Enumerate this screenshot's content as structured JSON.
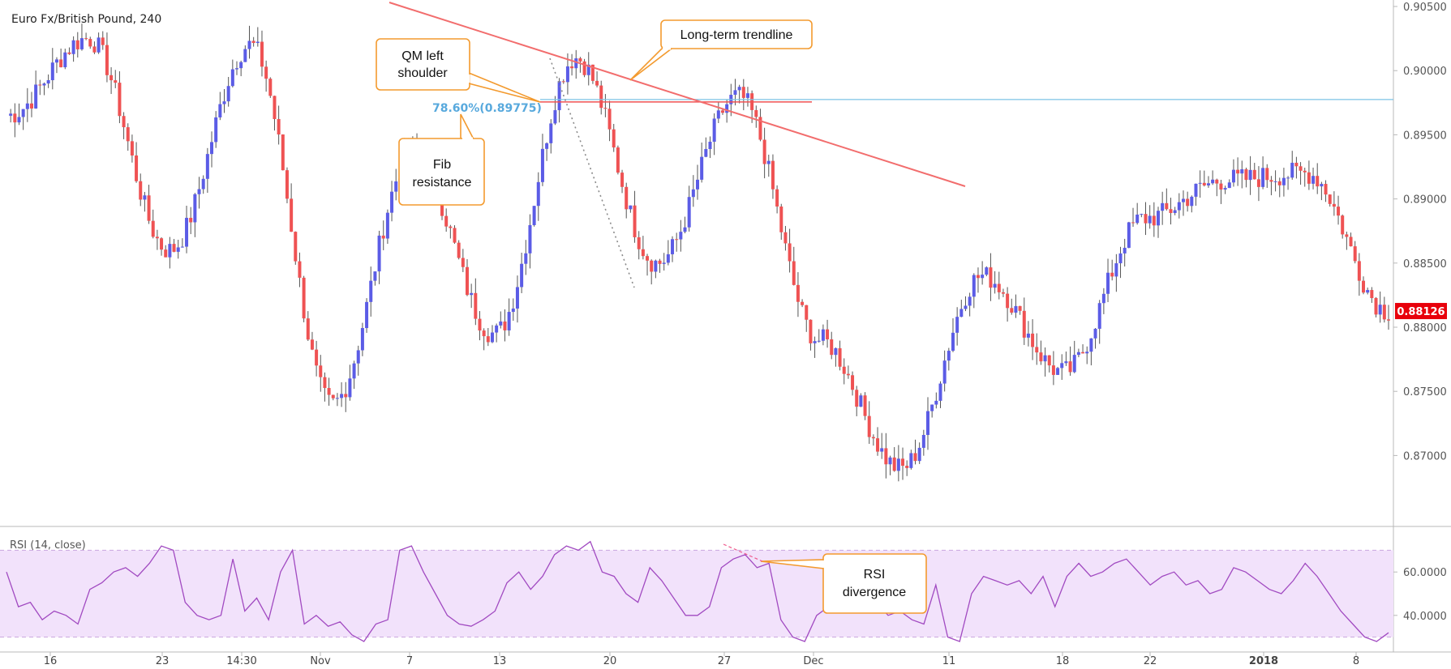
{
  "chart_data": [
    {
      "type": "candlestick",
      "title": "Euro Fx/British Pound, 240",
      "ylim": [
        0.8675,
        0.905
      ],
      "y_ticks": [
        "0.90500",
        "0.90000",
        "0.89500",
        "0.89000",
        "0.88500",
        "0.88000",
        "0.87500",
        "0.87000"
      ],
      "y_tick_values": [
        0.905,
        0.9,
        0.895,
        0.89,
        0.885,
        0.88,
        0.875,
        0.87
      ],
      "x_ticks": [
        "16",
        "23",
        "14:30",
        "Nov",
        "7",
        "13",
        "20",
        "27",
        "Dec",
        "11",
        "18",
        "22",
        "2018",
        "8"
      ],
      "x_tick_bold": [
        false,
        false,
        false,
        false,
        false,
        false,
        false,
        false,
        false,
        false,
        false,
        false,
        true,
        false
      ],
      "last_price": "0.88126",
      "last_price_value": 0.88126,
      "colors": {
        "up": "#5b5ce6",
        "down": "#ef5253",
        "trendline": "#f26d6d",
        "fib": "#7cc3e6",
        "badge": "#e8000b",
        "callout": "#f39a2e"
      },
      "grid": false,
      "key_points": [
        {
          "label": "start",
          "price": 0.8965
        },
        {
          "label": "Oct high",
          "price": 0.9025
        },
        {
          "label": "Oct 20 low",
          "price": 0.886
        },
        {
          "label": "Oct 23 high",
          "price": 0.902
        },
        {
          "label": "Nov 1 low",
          "price": 0.874
        },
        {
          "label": "Nov 3 high",
          "price": 0.8935
        },
        {
          "label": "Nov 7 low",
          "price": 0.8795
        },
        {
          "label": "Nov 15 high",
          "price": 0.901
        },
        {
          "label": "Nov 22 low",
          "price": 0.885
        },
        {
          "label": "Nov 28 high",
          "price": 0.898
        },
        {
          "label": "Dec 1 low",
          "price": 0.879
        },
        {
          "label": "Dec 8 low",
          "price": 0.869
        },
        {
          "label": "Dec 11 high",
          "price": 0.884
        },
        {
          "label": "Dec 15 low",
          "price": 0.8765
        },
        {
          "label": "Dec 22 high",
          "price": 0.8885
        },
        {
          "label": "Jan 3 high",
          "price": 0.8915
        },
        {
          "label": "Jan 5 high",
          "price": 0.892
        },
        {
          "label": "last",
          "price": 0.88126
        }
      ],
      "fib_level": {
        "label": "78.60%(0.89775)",
        "price": 0.89775
      },
      "annotations": [
        {
          "name": "long-term-trendline",
          "text": "Long-term trendline"
        },
        {
          "name": "qm-left-shoulder",
          "line1": "QM left",
          "line2": "shoulder"
        },
        {
          "name": "fib-resistance",
          "line1": "Fib",
          "line2": "resistance"
        }
      ]
    },
    {
      "type": "line",
      "title": "RSI (14, close)",
      "ylim": [
        25,
        78
      ],
      "y_ticks": [
        "60.0000",
        "40.0000"
      ],
      "y_tick_values": [
        60,
        40
      ],
      "bands": [
        30,
        70
      ],
      "series": [
        {
          "name": "RSI (14, close)",
          "values": [
            60,
            44,
            46,
            38,
            42,
            40,
            36,
            52,
            55,
            60,
            62,
            58,
            64,
            72,
            70,
            46,
            40,
            38,
            40,
            66,
            42,
            48,
            38,
            60,
            70,
            36,
            40,
            35,
            37,
            31,
            28,
            36,
            38,
            70,
            72,
            60,
            50,
            40,
            36,
            35,
            38,
            42,
            55,
            60,
            52,
            58,
            68,
            72,
            70,
            74,
            60,
            58,
            50,
            46,
            62,
            56,
            48,
            40,
            40,
            44,
            62,
            66,
            68,
            62,
            64,
            38,
            30,
            28,
            40,
            44,
            52,
            48,
            60,
            46,
            40,
            42,
            38,
            36,
            54,
            30,
            28,
            50,
            58,
            56,
            54,
            56,
            50,
            58,
            44,
            58,
            64,
            58,
            60,
            64,
            66,
            60,
            54,
            58,
            60,
            54,
            56,
            50,
            52,
            62,
            60,
            56,
            52,
            50,
            56,
            64,
            58,
            50,
            42,
            36,
            30,
            28,
            32
          ]
        }
      ],
      "callout": {
        "name": "rsi-divergence",
        "line1": "RSI",
        "line2": "divergence"
      }
    }
  ]
}
